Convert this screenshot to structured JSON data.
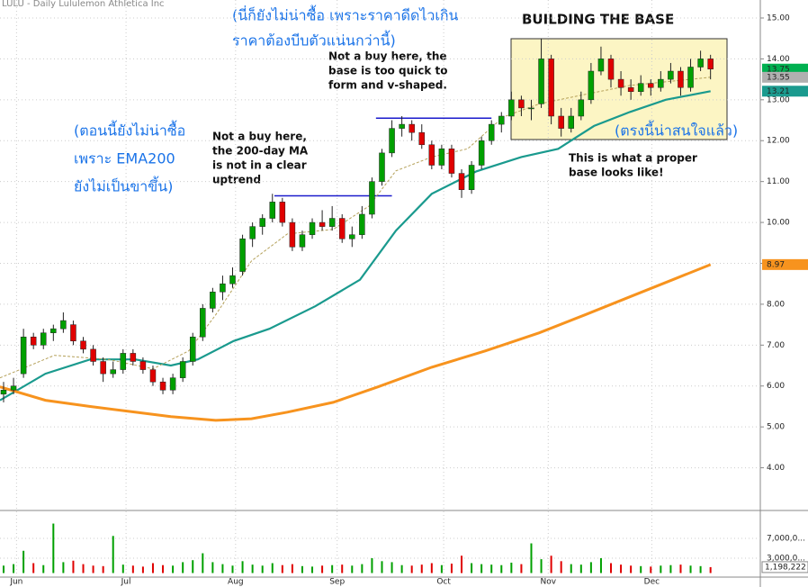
{
  "chart_data": {
    "type": "candlestick",
    "title": "LULU - Daily  Lululemon Athletica Inc",
    "xlim": [
      -0.36,
      76
    ],
    "xticks": [
      {
        "value": 1.3,
        "label": "Jun"
      },
      {
        "value": 12.3,
        "label": "Jul"
      },
      {
        "value": 23.3,
        "label": "Aug"
      },
      {
        "value": 33.5,
        "label": "Sep"
      },
      {
        "value": 44.2,
        "label": "Oct"
      },
      {
        "value": 54.7,
        "label": "Nov"
      },
      {
        "value": 65.1,
        "label": "Dec"
      }
    ],
    "ylim": [
      3.0,
      15.44
    ],
    "yticks": [
      {
        "value": 4,
        "label": "4.00"
      },
      {
        "value": 5,
        "label": "5.00"
      },
      {
        "value": 6,
        "label": "6.00"
      },
      {
        "value": 7,
        "label": "7.00"
      },
      {
        "value": 8,
        "label": "8.00"
      },
      {
        "value": 9,
        "label": "9.00"
      },
      {
        "value": 10,
        "label": "10.00"
      },
      {
        "value": 11,
        "label": "11.00"
      },
      {
        "value": 12,
        "label": "12.00"
      },
      {
        "value": 13,
        "label": "13.00"
      },
      {
        "value": 14,
        "label": "14.00"
      },
      {
        "value": 15,
        "label": "15.00"
      }
    ],
    "grid": true,
    "up_color": "#00a000",
    "down_color": "#e00000",
    "candles": [
      [
        5.8,
        6.1,
        5.6,
        5.9
      ],
      [
        5.9,
        6.2,
        5.8,
        6.0
      ],
      [
        6.3,
        7.4,
        6.2,
        7.2
      ],
      [
        7.2,
        7.3,
        6.9,
        7.0
      ],
      [
        7.0,
        7.4,
        6.9,
        7.3
      ],
      [
        7.3,
        7.5,
        7.1,
        7.4
      ],
      [
        7.4,
        7.8,
        7.3,
        7.6
      ],
      [
        7.5,
        7.6,
        7.0,
        7.1
      ],
      [
        7.1,
        7.2,
        6.8,
        6.9
      ],
      [
        6.9,
        7.0,
        6.5,
        6.6
      ],
      [
        6.6,
        6.7,
        6.1,
        6.3
      ],
      [
        6.3,
        6.6,
        6.2,
        6.4
      ],
      [
        6.4,
        6.9,
        6.3,
        6.8
      ],
      [
        6.8,
        6.9,
        6.5,
        6.6
      ],
      [
        6.6,
        6.7,
        6.3,
        6.4
      ],
      [
        6.4,
        6.5,
        6.0,
        6.1
      ],
      [
        6.1,
        6.2,
        5.8,
        5.9
      ],
      [
        5.9,
        6.3,
        5.8,
        6.2
      ],
      [
        6.2,
        6.7,
        6.1,
        6.6
      ],
      [
        6.6,
        7.3,
        6.5,
        7.2
      ],
      [
        7.2,
        8.0,
        7.1,
        7.9
      ],
      [
        7.9,
        8.4,
        7.8,
        8.3
      ],
      [
        8.3,
        8.7,
        8.1,
        8.5
      ],
      [
        8.5,
        8.9,
        8.4,
        8.7
      ],
      [
        8.8,
        9.7,
        8.7,
        9.6
      ],
      [
        9.6,
        10.0,
        9.4,
        9.9
      ],
      [
        9.9,
        10.2,
        9.7,
        10.1
      ],
      [
        10.1,
        10.7,
        10.0,
        10.5
      ],
      [
        10.5,
        10.6,
        9.9,
        10.0
      ],
      [
        10.0,
        10.1,
        9.3,
        9.4
      ],
      [
        9.4,
        9.8,
        9.3,
        9.7
      ],
      [
        9.7,
        10.1,
        9.6,
        10.0
      ],
      [
        10.0,
        10.3,
        9.8,
        9.9
      ],
      [
        9.9,
        10.4,
        9.8,
        10.1
      ],
      [
        10.1,
        10.2,
        9.5,
        9.6
      ],
      [
        9.6,
        9.9,
        9.4,
        9.7
      ],
      [
        9.7,
        10.4,
        9.6,
        10.2
      ],
      [
        10.2,
        11.1,
        10.1,
        11.0
      ],
      [
        11.0,
        11.8,
        10.9,
        11.7
      ],
      [
        11.7,
        12.5,
        11.6,
        12.3
      ],
      [
        12.3,
        12.6,
        12.1,
        12.4
      ],
      [
        12.4,
        12.5,
        12.0,
        12.2
      ],
      [
        12.2,
        12.4,
        11.8,
        11.9
      ],
      [
        11.9,
        12.0,
        11.3,
        11.4
      ],
      [
        11.4,
        11.9,
        11.3,
        11.8
      ],
      [
        11.8,
        11.9,
        11.1,
        11.2
      ],
      [
        11.2,
        11.3,
        10.6,
        10.8
      ],
      [
        10.8,
        11.5,
        10.7,
        11.4
      ],
      [
        11.4,
        12.1,
        11.3,
        12.0
      ],
      [
        12.0,
        12.5,
        11.9,
        12.4
      ],
      [
        12.4,
        12.7,
        12.2,
        12.6
      ],
      [
        12.6,
        13.2,
        12.5,
        13.0
      ],
      [
        13.0,
        13.1,
        12.6,
        12.8
      ],
      [
        12.8,
        13.0,
        12.5,
        12.8
      ],
      [
        12.9,
        14.5,
        12.8,
        14.0
      ],
      [
        14.0,
        14.1,
        12.4,
        12.6
      ],
      [
        12.6,
        12.8,
        12.1,
        12.3
      ],
      [
        12.3,
        12.8,
        12.2,
        12.6
      ],
      [
        12.6,
        13.2,
        12.5,
        13.0
      ],
      [
        13.0,
        13.9,
        12.9,
        13.7
      ],
      [
        13.7,
        14.3,
        13.6,
        14.0
      ],
      [
        14.0,
        14.1,
        13.3,
        13.5
      ],
      [
        13.5,
        13.7,
        13.1,
        13.3
      ],
      [
        13.3,
        13.5,
        13.0,
        13.2
      ],
      [
        13.2,
        13.6,
        13.1,
        13.4
      ],
      [
        13.4,
        13.5,
        13.1,
        13.3
      ],
      [
        13.3,
        13.7,
        13.2,
        13.5
      ],
      [
        13.5,
        13.9,
        13.4,
        13.7
      ],
      [
        13.7,
        13.8,
        13.1,
        13.3
      ],
      [
        13.3,
        14.0,
        13.2,
        13.8
      ],
      [
        13.8,
        14.2,
        13.7,
        14.0
      ],
      [
        14.0,
        14.1,
        13.5,
        13.75
      ]
    ],
    "lines": [
      {
        "color": "#1a9a8e",
        "width": 2.2,
        "x": [
          -0.36,
          4.2,
          8.7,
          13.2,
          16.8,
          19.5,
          23.1,
          26.7,
          31.3,
          35.8,
          39.4,
          43,
          47.5,
          52,
          55.7,
          59.3,
          62.9,
          66.5,
          71
        ],
        "values": [
          5.65,
          6.3,
          6.65,
          6.65,
          6.5,
          6.65,
          7.1,
          7.4,
          7.95,
          8.6,
          9.8,
          10.7,
          11.25,
          11.6,
          11.8,
          12.36,
          12.7,
          13.0,
          13.21
        ]
      },
      {
        "color": "#f7931e",
        "width": 3,
        "x": [
          -0.36,
          4.2,
          8.7,
          13.2,
          16.8,
          21.3,
          24.9,
          28.5,
          33.1,
          37.6,
          43,
          48.4,
          53.8,
          58.4,
          62.9,
          67.4,
          71
        ],
        "values": [
          5.98,
          5.65,
          5.5,
          5.36,
          5.25,
          5.16,
          5.2,
          5.36,
          5.6,
          5.98,
          6.46,
          6.86,
          7.3,
          7.74,
          8.18,
          8.62,
          8.97
        ]
      },
      {
        "color": "#b5a15a",
        "width": 1,
        "dash": true,
        "x": [
          -0.36,
          5.1,
          10.5,
          15,
          18.6,
          21.3,
          24.9,
          28.5,
          33.1,
          36.7,
          39.4,
          43,
          46.6,
          50.2,
          53.8,
          58.4,
          62.9,
          71
        ],
        "values": [
          6.2,
          6.75,
          6.65,
          6.42,
          6.86,
          7.74,
          9.06,
          9.72,
          9.83,
          10.4,
          11.26,
          11.6,
          11.8,
          12.58,
          12.9,
          13.13,
          13.35,
          13.55
        ]
      }
    ],
    "levels": [
      {
        "value": 10.65,
        "x": [
          27.2,
          39
        ]
      },
      {
        "value": 12.55,
        "x": [
          37.4,
          49
        ]
      }
    ],
    "price_tags": [
      {
        "value": 13.75,
        "color": "#00b050"
      },
      {
        "value": 13.55,
        "color": "#b0b0b0"
      },
      {
        "value": 13.21,
        "color": "#1a9a8e"
      },
      {
        "value": 8.97,
        "color": "#f7931e"
      }
    ],
    "volume": {
      "ylim": [
        0,
        12100000
      ],
      "yticks": [
        {
          "value": 7000000,
          "label": "7,000,0..."
        },
        {
          "value": 3000000,
          "label": "3,000,0..."
        }
      ],
      "values": [
        1500000,
        1800000,
        4500000,
        2000000,
        1600000,
        10000000,
        2200000,
        2500000,
        1800000,
        1500000,
        1400000,
        7500000,
        1700000,
        1500000,
        1300000,
        2000000,
        1600000,
        1500000,
        2200000,
        2600000,
        4000000,
        2200000,
        1800000,
        1500000,
        2400000,
        1700000,
        1500000,
        2000000,
        1600000,
        1800000,
        1400000,
        1300000,
        1500000,
        1600000,
        1700000,
        1500000,
        1800000,
        3000000,
        2400000,
        2200000,
        1600000,
        1500000,
        1700000,
        2000000,
        1600000,
        1900000,
        3500000,
        2000000,
        1800000,
        1700000,
        1600000,
        2100000,
        1800000,
        6000000,
        2800000,
        3500000,
        2400000,
        1800000,
        1700000,
        2200000,
        3000000,
        2000000,
        1700000,
        1500000,
        1400000,
        1300000,
        1500000,
        1600000,
        1700000,
        1500000,
        1400000,
        1198222
      ],
      "tag": {
        "value": 1198222,
        "label": "1,198,222"
      }
    },
    "annotations": {
      "title_box": "BUILDING THE BASE",
      "thai_top": [
        "(นี่ก็ยังไม่น่าซื้อ เพราะราคาดีดไวเกิน",
        "ราคาต้องบีบตัวแน่นกว่านี้)"
      ],
      "thai_left": [
        "(ตอนนี้ยังไม่น่าซื้อ",
        "เพราะ EMA200",
        "ยังไม่เป็นขาขึ้น)"
      ],
      "thai_right": "(ตรงนี้น่าสนใจแล้ว)",
      "note_200": [
        "Not a buy here,",
        "the 200-day MA",
        "is not in a clear",
        "uptrend"
      ],
      "note_quick": [
        "Not a buy here, the",
        "base is too quick to",
        "form and v-shaped."
      ],
      "note_proper": [
        "This is what a proper",
        "base looks like!"
      ]
    }
  }
}
